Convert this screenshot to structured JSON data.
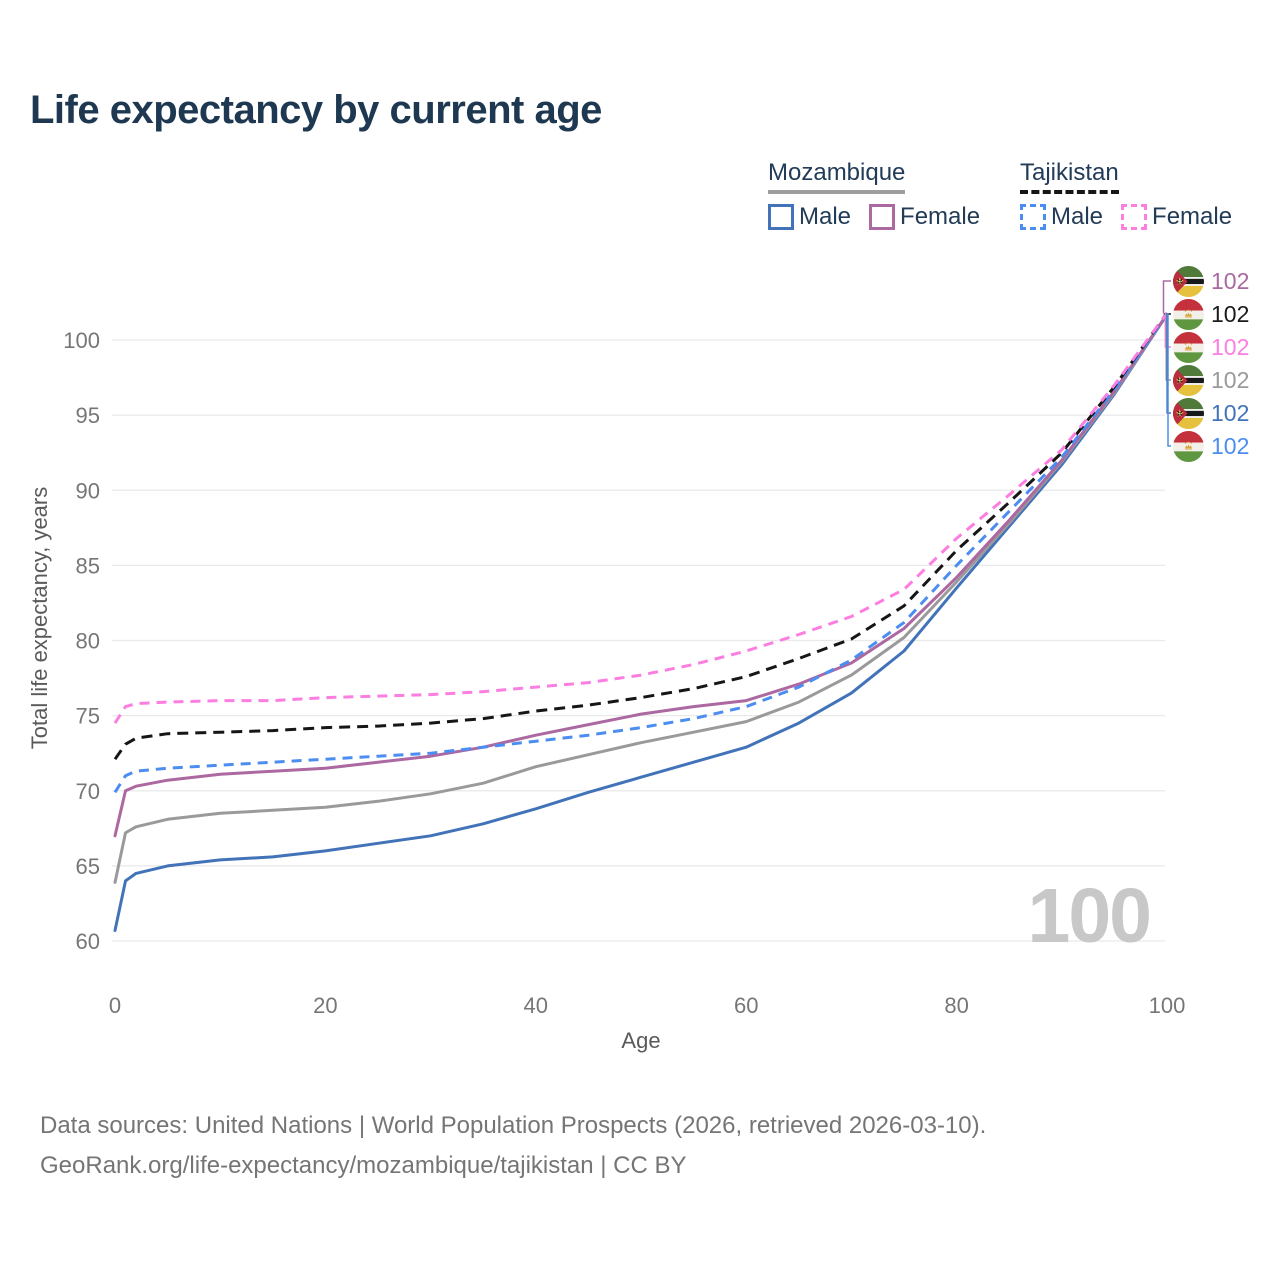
{
  "title": "Life expectancy by current age",
  "legend": {
    "groups": [
      {
        "country": "Mozambique",
        "underline_style": "solid",
        "underline_color": "#9e9e9e",
        "items": [
          {
            "label": "Male",
            "color": "#4273b9",
            "border_style": "solid"
          },
          {
            "label": "Female",
            "color": "#ac68a1",
            "border_style": "solid"
          }
        ]
      },
      {
        "country": "Tajikistan",
        "underline_style": "dashed",
        "underline_color": "#161616",
        "items": [
          {
            "label": "Male",
            "color": "#4b8df0",
            "border_style": "dashed"
          },
          {
            "label": "Female",
            "color": "#fb7ee0",
            "border_style": "dashed"
          }
        ]
      }
    ]
  },
  "chart_data": {
    "type": "line",
    "title": "Life expectancy by current age",
    "xlabel": "Age",
    "ylabel": "Total life expectancy, years",
    "xlim": [
      0,
      100
    ],
    "ylim": [
      60,
      100
    ],
    "x_ticks": [
      0,
      20,
      40,
      60,
      80,
      100
    ],
    "y_ticks": [
      60,
      65,
      70,
      75,
      80,
      85,
      90,
      95,
      100
    ],
    "grid": "horizontal",
    "age_indicator": "100",
    "series": [
      {
        "name": "Mozambique Male",
        "country": "mozambique",
        "sex": "male",
        "color": "#4273b9",
        "dash": null,
        "points": [
          [
            0,
            60.7
          ],
          [
            1,
            64.0
          ],
          [
            2,
            64.5
          ],
          [
            5,
            65.0
          ],
          [
            10,
            65.4
          ],
          [
            15,
            65.6
          ],
          [
            20,
            66.0
          ],
          [
            25,
            66.5
          ],
          [
            30,
            67.0
          ],
          [
            35,
            67.8
          ],
          [
            40,
            68.8
          ],
          [
            45,
            69.9
          ],
          [
            50,
            70.9
          ],
          [
            55,
            71.9
          ],
          [
            60,
            72.9
          ],
          [
            65,
            74.5
          ],
          [
            70,
            76.5
          ],
          [
            75,
            79.3
          ],
          [
            80,
            83.5
          ],
          [
            85,
            87.6
          ],
          [
            90,
            91.7
          ],
          [
            95,
            96.4
          ],
          [
            100,
            101.7
          ]
        ]
      },
      {
        "name": "Mozambique Total",
        "country": "mozambique",
        "sex": "total",
        "color": "#9a9a9a",
        "dash": null,
        "points": [
          [
            0,
            63.9
          ],
          [
            1,
            67.2
          ],
          [
            2,
            67.6
          ],
          [
            5,
            68.1
          ],
          [
            10,
            68.5
          ],
          [
            15,
            68.7
          ],
          [
            20,
            68.9
          ],
          [
            25,
            69.3
          ],
          [
            30,
            69.8
          ],
          [
            35,
            70.5
          ],
          [
            40,
            71.6
          ],
          [
            45,
            72.4
          ],
          [
            50,
            73.2
          ],
          [
            55,
            73.9
          ],
          [
            60,
            74.6
          ],
          [
            65,
            75.9
          ],
          [
            70,
            77.7
          ],
          [
            75,
            80.2
          ],
          [
            80,
            83.9
          ],
          [
            85,
            87.8
          ],
          [
            90,
            91.9
          ],
          [
            95,
            96.5
          ],
          [
            100,
            101.7
          ]
        ]
      },
      {
        "name": "Mozambique Female",
        "country": "mozambique",
        "sex": "female",
        "color": "#ac68a1",
        "dash": null,
        "points": [
          [
            0,
            67.0
          ],
          [
            1,
            70.0
          ],
          [
            2,
            70.3
          ],
          [
            5,
            70.7
          ],
          [
            10,
            71.1
          ],
          [
            15,
            71.3
          ],
          [
            20,
            71.5
          ],
          [
            25,
            71.9
          ],
          [
            30,
            72.3
          ],
          [
            35,
            72.9
          ],
          [
            40,
            73.7
          ],
          [
            45,
            74.4
          ],
          [
            50,
            75.1
          ],
          [
            55,
            75.6
          ],
          [
            60,
            76.0
          ],
          [
            65,
            77.1
          ],
          [
            70,
            78.5
          ],
          [
            75,
            80.8
          ],
          [
            80,
            84.2
          ],
          [
            85,
            88.0
          ],
          [
            90,
            92.0
          ],
          [
            95,
            96.6
          ],
          [
            100,
            101.7
          ]
        ]
      },
      {
        "name": "Tajikistan Male",
        "country": "tajikistan",
        "sex": "male",
        "color": "#4b8df0",
        "dash": "10 7",
        "points": [
          [
            0,
            69.9
          ],
          [
            1,
            71.0
          ],
          [
            2,
            71.3
          ],
          [
            5,
            71.5
          ],
          [
            10,
            71.7
          ],
          [
            15,
            71.9
          ],
          [
            20,
            72.1
          ],
          [
            25,
            72.3
          ],
          [
            30,
            72.5
          ],
          [
            35,
            72.9
          ],
          [
            40,
            73.3
          ],
          [
            45,
            73.7
          ],
          [
            50,
            74.2
          ],
          [
            55,
            74.8
          ],
          [
            60,
            75.6
          ],
          [
            65,
            76.9
          ],
          [
            70,
            78.7
          ],
          [
            75,
            81.2
          ],
          [
            80,
            85.0
          ],
          [
            85,
            88.6
          ],
          [
            90,
            92.2
          ],
          [
            95,
            96.7
          ],
          [
            100,
            101.7
          ]
        ]
      },
      {
        "name": "Tajikistan Total",
        "country": "tajikistan",
        "sex": "total",
        "color": "#161616",
        "dash": "11 7",
        "points": [
          [
            0,
            72.1
          ],
          [
            1,
            73.1
          ],
          [
            2,
            73.5
          ],
          [
            5,
            73.8
          ],
          [
            10,
            73.9
          ],
          [
            15,
            74.0
          ],
          [
            20,
            74.2
          ],
          [
            25,
            74.3
          ],
          [
            30,
            74.5
          ],
          [
            35,
            74.8
          ],
          [
            40,
            75.3
          ],
          [
            45,
            75.7
          ],
          [
            50,
            76.2
          ],
          [
            55,
            76.8
          ],
          [
            60,
            77.6
          ],
          [
            65,
            78.8
          ],
          [
            70,
            80.1
          ],
          [
            75,
            82.3
          ],
          [
            80,
            86.0
          ],
          [
            85,
            89.2
          ],
          [
            90,
            92.5
          ],
          [
            95,
            96.9
          ],
          [
            100,
            101.8
          ]
        ]
      },
      {
        "name": "Tajikistan Female",
        "country": "tajikistan",
        "sex": "female",
        "color": "#fb7ee0",
        "dash": "10 7",
        "points": [
          [
            0,
            74.5
          ],
          [
            1,
            75.6
          ],
          [
            2,
            75.8
          ],
          [
            5,
            75.9
          ],
          [
            10,
            76.0
          ],
          [
            15,
            76.0
          ],
          [
            20,
            76.2
          ],
          [
            25,
            76.3
          ],
          [
            30,
            76.4
          ],
          [
            35,
            76.6
          ],
          [
            40,
            76.9
          ],
          [
            45,
            77.2
          ],
          [
            50,
            77.7
          ],
          [
            55,
            78.4
          ],
          [
            60,
            79.3
          ],
          [
            65,
            80.4
          ],
          [
            70,
            81.6
          ],
          [
            75,
            83.4
          ],
          [
            80,
            86.8
          ],
          [
            85,
            89.7
          ],
          [
            90,
            92.7
          ],
          [
            95,
            97.0
          ],
          [
            100,
            101.8
          ]
        ]
      }
    ],
    "end_labels": [
      {
        "series": "Mozambique Female",
        "flag": "mozambique",
        "value": "102",
        "color": "#a86aa0"
      },
      {
        "series": "Tajikistan Total",
        "flag": "tajikistan",
        "value": "102",
        "color": "#1b1b1b"
      },
      {
        "series": "Tajikistan Female",
        "flag": "tajikistan",
        "value": "102",
        "color": "#fb7ee0"
      },
      {
        "series": "Mozambique Total",
        "flag": "mozambique",
        "value": "102",
        "color": "#9a9a9a"
      },
      {
        "series": "Mozambique Male",
        "flag": "mozambique",
        "value": "102",
        "color": "#4273b9"
      },
      {
        "series": "Tajikistan Male",
        "flag": "tajikistan",
        "value": "102",
        "color": "#4b8df0"
      }
    ]
  },
  "footer": {
    "line1": "Data sources: United Nations | World Population Prospects (2026, retrieved 2026-03-10).",
    "line2": "GeoRank.org/life-expectancy/mozambique/tajikistan | CC BY"
  }
}
